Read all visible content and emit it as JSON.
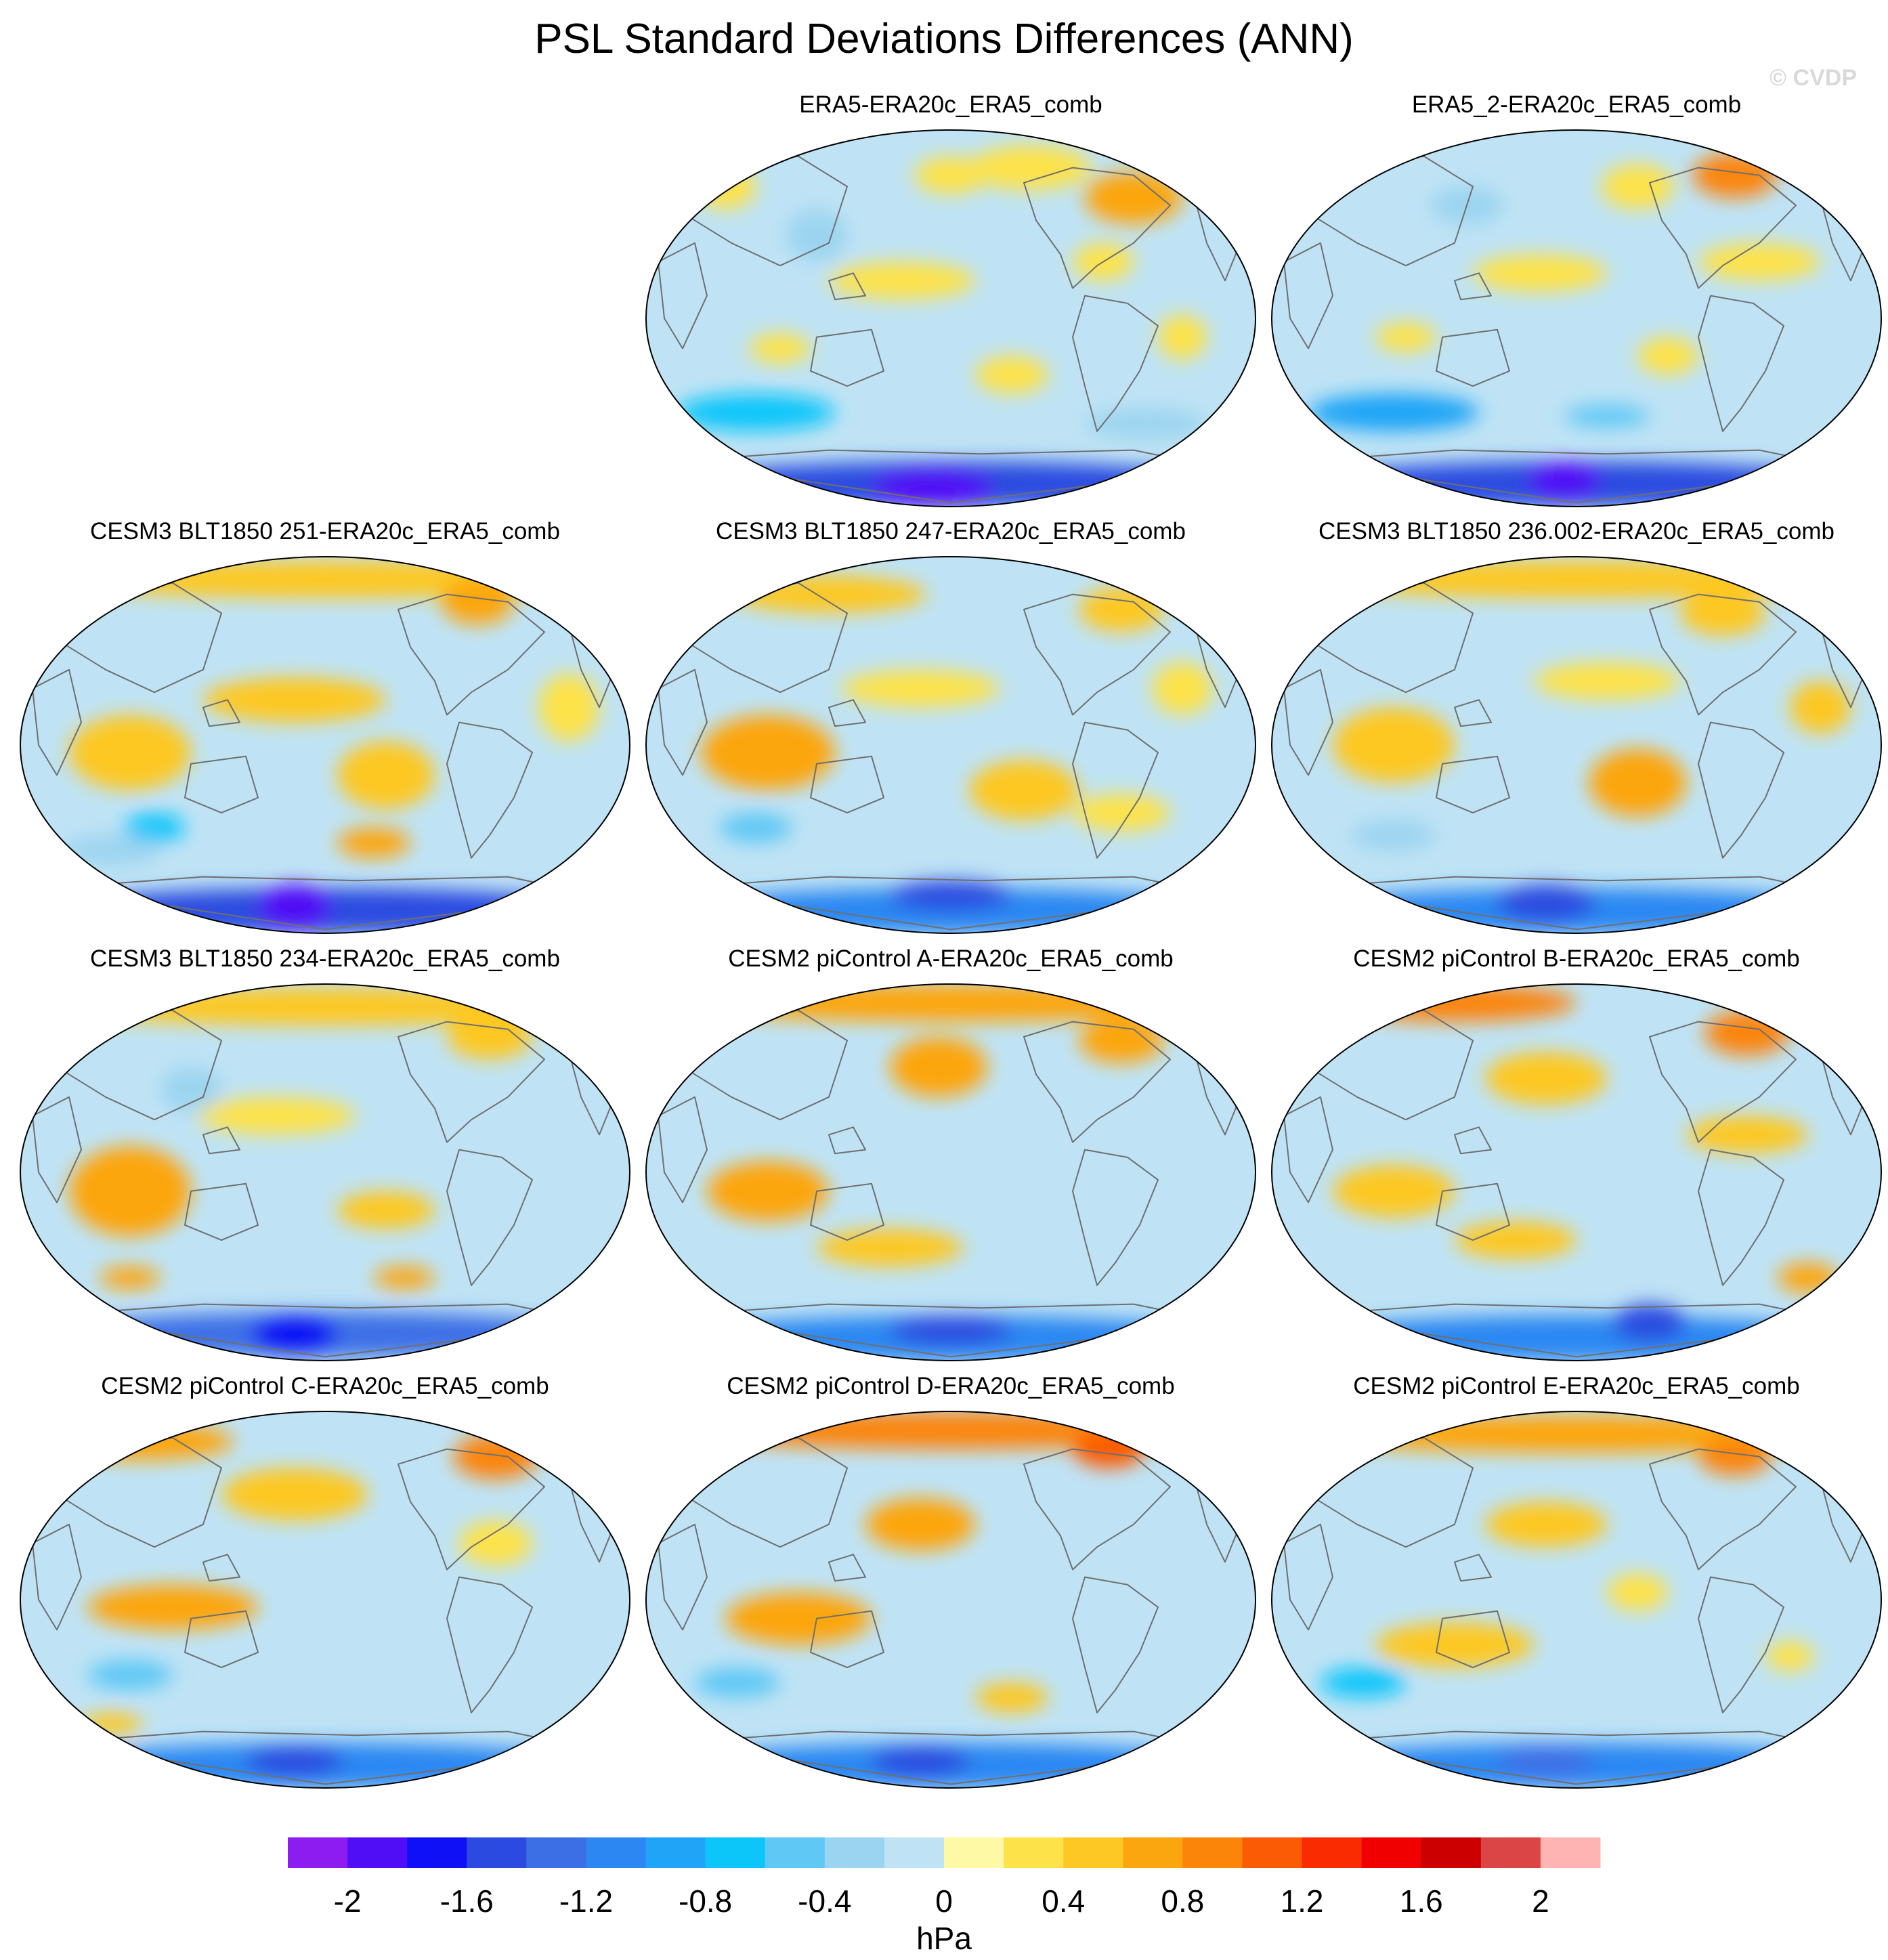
{
  "chart_data": {
    "type": "map_grid",
    "title": "PSL Standard Deviations Differences (ANN)",
    "watermark": "© CVDP",
    "projection": "robinson",
    "panels": [
      {
        "row": 0,
        "col": 1,
        "label": "ERA5-ERA20c_ERA5_comb",
        "blobs": [
          [
            0.8,
            0.18,
            0.08,
            0.07,
            0.6
          ],
          [
            0.63,
            0.1,
            0.1,
            0.06,
            0.3
          ],
          [
            0.13,
            0.15,
            0.05,
            0.06,
            0.3
          ],
          [
            0.5,
            0.12,
            0.06,
            0.05,
            0.3
          ],
          [
            0.75,
            0.35,
            0.05,
            0.05,
            0.25
          ],
          [
            0.28,
            0.28,
            0.05,
            0.07,
            -0.3
          ],
          [
            0.42,
            0.4,
            0.12,
            0.05,
            0.2
          ],
          [
            0.88,
            0.55,
            0.04,
            0.06,
            0.25
          ],
          [
            0.22,
            0.58,
            0.05,
            0.04,
            0.3
          ],
          [
            0.6,
            0.65,
            0.06,
            0.05,
            0.2
          ],
          [
            0.18,
            0.75,
            0.13,
            0.05,
            -0.8
          ],
          [
            0.82,
            0.78,
            0.1,
            0.04,
            -0.4
          ],
          [
            0.5,
            0.94,
            0.45,
            0.06,
            -1.6
          ],
          [
            0.47,
            0.95,
            0.1,
            0.05,
            -1.9
          ]
        ]
      },
      {
        "row": 0,
        "col": 2,
        "label": "ERA5_2-ERA20c_ERA5_comb",
        "blobs": [
          [
            0.76,
            0.12,
            0.07,
            0.06,
            0.8
          ],
          [
            0.6,
            0.15,
            0.06,
            0.06,
            0.3
          ],
          [
            0.32,
            0.2,
            0.06,
            0.05,
            -0.4
          ],
          [
            0.44,
            0.38,
            0.11,
            0.05,
            0.3
          ],
          [
            0.8,
            0.35,
            0.1,
            0.05,
            0.3
          ],
          [
            0.22,
            0.55,
            0.05,
            0.04,
            0.3
          ],
          [
            0.65,
            0.6,
            0.05,
            0.05,
            0.2
          ],
          [
            0.2,
            0.75,
            0.14,
            0.05,
            -0.9
          ],
          [
            0.55,
            0.76,
            0.07,
            0.03,
            -0.5
          ],
          [
            0.5,
            0.94,
            0.45,
            0.06,
            -1.5
          ],
          [
            0.48,
            0.93,
            0.06,
            0.05,
            -2.0
          ]
        ]
      },
      {
        "row": 1,
        "col": 0,
        "label": "CESM3 BLT1850 251-ERA20c_ERA5_comb",
        "blobs": [
          [
            0.5,
            0.06,
            0.45,
            0.05,
            0.5
          ],
          [
            0.75,
            0.12,
            0.06,
            0.06,
            0.6
          ],
          [
            0.45,
            0.38,
            0.15,
            0.06,
            0.4
          ],
          [
            0.18,
            0.52,
            0.1,
            0.1,
            0.5
          ],
          [
            0.6,
            0.58,
            0.08,
            0.09,
            0.5
          ],
          [
            0.9,
            0.4,
            0.05,
            0.09,
            0.3
          ],
          [
            0.22,
            0.72,
            0.05,
            0.04,
            -0.7
          ],
          [
            0.58,
            0.76,
            0.06,
            0.04,
            0.6
          ],
          [
            0.15,
            0.78,
            0.08,
            0.04,
            -0.4
          ],
          [
            0.5,
            0.94,
            0.45,
            0.06,
            -1.6
          ],
          [
            0.45,
            0.93,
            0.06,
            0.06,
            -2.0
          ]
        ]
      },
      {
        "row": 1,
        "col": 1,
        "label": "CESM3 BLT1850 247-ERA20c_ERA5_comb",
        "blobs": [
          [
            0.3,
            0.1,
            0.16,
            0.05,
            0.5
          ],
          [
            0.78,
            0.14,
            0.07,
            0.06,
            0.4
          ],
          [
            0.2,
            0.52,
            0.11,
            0.1,
            0.6
          ],
          [
            0.45,
            0.35,
            0.13,
            0.05,
            0.3
          ],
          [
            0.62,
            0.62,
            0.09,
            0.08,
            0.5
          ],
          [
            0.88,
            0.35,
            0.05,
            0.07,
            0.3
          ],
          [
            0.18,
            0.72,
            0.06,
            0.04,
            -0.6
          ],
          [
            0.78,
            0.68,
            0.08,
            0.05,
            0.3
          ],
          [
            0.5,
            0.94,
            0.45,
            0.06,
            -1.2
          ],
          [
            0.5,
            0.9,
            0.1,
            0.04,
            -1.5
          ]
        ]
      },
      {
        "row": 1,
        "col": 2,
        "label": "CESM3 BLT1850 236.002-ERA20c_ERA5_comb",
        "blobs": [
          [
            0.5,
            0.06,
            0.45,
            0.05,
            0.4
          ],
          [
            0.74,
            0.15,
            0.07,
            0.06,
            0.5
          ],
          [
            0.2,
            0.5,
            0.1,
            0.1,
            0.5
          ],
          [
            0.55,
            0.33,
            0.12,
            0.05,
            0.3
          ],
          [
            0.6,
            0.6,
            0.08,
            0.09,
            0.6
          ],
          [
            0.9,
            0.4,
            0.05,
            0.07,
            0.4
          ],
          [
            0.2,
            0.74,
            0.07,
            0.04,
            -0.3
          ],
          [
            0.5,
            0.94,
            0.45,
            0.06,
            -1.2
          ],
          [
            0.45,
            0.92,
            0.08,
            0.05,
            -1.5
          ]
        ]
      },
      {
        "row": 2,
        "col": 0,
        "label": "CESM3 BLT1850 234-ERA20c_ERA5_comb",
        "blobs": [
          [
            0.5,
            0.06,
            0.45,
            0.05,
            0.5
          ],
          [
            0.77,
            0.14,
            0.07,
            0.06,
            0.5
          ],
          [
            0.18,
            0.55,
            0.1,
            0.12,
            0.7
          ],
          [
            0.42,
            0.35,
            0.13,
            0.05,
            0.3
          ],
          [
            0.6,
            0.6,
            0.08,
            0.05,
            0.4
          ],
          [
            0.18,
            0.78,
            0.05,
            0.03,
            0.6
          ],
          [
            0.63,
            0.78,
            0.05,
            0.03,
            0.6
          ],
          [
            0.28,
            0.28,
            0.05,
            0.06,
            -0.3
          ],
          [
            0.5,
            0.93,
            0.45,
            0.06,
            -1.3
          ],
          [
            0.45,
            0.93,
            0.07,
            0.05,
            -1.7
          ]
        ]
      },
      {
        "row": 2,
        "col": 1,
        "label": "CESM2 piControl A-ERA20c_ERA5_comb",
        "blobs": [
          [
            0.5,
            0.05,
            0.45,
            0.05,
            0.7
          ],
          [
            0.48,
            0.22,
            0.08,
            0.08,
            0.7
          ],
          [
            0.78,
            0.15,
            0.07,
            0.06,
            0.6
          ],
          [
            0.2,
            0.55,
            0.1,
            0.08,
            0.6
          ],
          [
            0.4,
            0.7,
            0.12,
            0.05,
            0.4
          ],
          [
            0.78,
            0.55,
            0.05,
            0.05,
            -0.2
          ],
          [
            0.5,
            0.94,
            0.45,
            0.06,
            -1.2
          ],
          [
            0.5,
            0.92,
            0.1,
            0.04,
            -1.6
          ]
        ]
      },
      {
        "row": 2,
        "col": 2,
        "label": "CESM2 piControl B-ERA20c_ERA5_comb",
        "blobs": [
          [
            0.3,
            0.05,
            0.2,
            0.05,
            0.8
          ],
          [
            0.78,
            0.13,
            0.07,
            0.06,
            0.8
          ],
          [
            0.45,
            0.25,
            0.1,
            0.07,
            0.5
          ],
          [
            0.78,
            0.4,
            0.1,
            0.05,
            0.4
          ],
          [
            0.2,
            0.55,
            0.1,
            0.07,
            0.5
          ],
          [
            0.4,
            0.68,
            0.1,
            0.05,
            0.4
          ],
          [
            0.88,
            0.78,
            0.05,
            0.04,
            0.6
          ],
          [
            0.5,
            0.94,
            0.45,
            0.06,
            -1.2
          ],
          [
            0.62,
            0.9,
            0.06,
            0.05,
            -1.5
          ]
        ]
      },
      {
        "row": 3,
        "col": 0,
        "label": "CESM2 piControl C-ERA20c_ERA5_comb",
        "blobs": [
          [
            0.2,
            0.08,
            0.15,
            0.05,
            0.7
          ],
          [
            0.78,
            0.12,
            0.07,
            0.06,
            0.8
          ],
          [
            0.45,
            0.22,
            0.12,
            0.07,
            0.5
          ],
          [
            0.25,
            0.52,
            0.14,
            0.06,
            0.6
          ],
          [
            0.18,
            0.7,
            0.07,
            0.04,
            -0.5
          ],
          [
            0.15,
            0.83,
            0.05,
            0.03,
            0.5
          ],
          [
            0.78,
            0.35,
            0.06,
            0.06,
            0.3
          ],
          [
            0.5,
            0.94,
            0.45,
            0.06,
            -1.2
          ],
          [
            0.45,
            0.93,
            0.08,
            0.04,
            -1.5
          ]
        ]
      },
      {
        "row": 3,
        "col": 1,
        "label": "CESM2 piControl D-ERA20c_ERA5_comb",
        "blobs": [
          [
            0.5,
            0.05,
            0.45,
            0.05,
            0.9
          ],
          [
            0.76,
            0.1,
            0.06,
            0.05,
            1.0
          ],
          [
            0.45,
            0.3,
            0.09,
            0.07,
            0.6
          ],
          [
            0.25,
            0.55,
            0.12,
            0.07,
            0.6
          ],
          [
            0.15,
            0.72,
            0.07,
            0.04,
            -0.6
          ],
          [
            0.6,
            0.76,
            0.06,
            0.04,
            0.5
          ],
          [
            0.5,
            0.94,
            0.45,
            0.06,
            -1.2
          ],
          [
            0.45,
            0.93,
            0.08,
            0.04,
            -1.5
          ]
        ]
      },
      {
        "row": 3,
        "col": 2,
        "label": "CESM2 piControl E-ERA20c_ERA5_comb",
        "blobs": [
          [
            0.5,
            0.06,
            0.45,
            0.05,
            0.6
          ],
          [
            0.76,
            0.12,
            0.06,
            0.05,
            0.8
          ],
          [
            0.45,
            0.3,
            0.1,
            0.06,
            0.4
          ],
          [
            0.3,
            0.62,
            0.13,
            0.06,
            0.5
          ],
          [
            0.15,
            0.72,
            0.07,
            0.04,
            -0.7
          ],
          [
            0.6,
            0.48,
            0.05,
            0.05,
            0.3
          ],
          [
            0.85,
            0.65,
            0.04,
            0.04,
            0.3
          ],
          [
            0.5,
            0.94,
            0.45,
            0.06,
            -1.1
          ],
          [
            0.45,
            0.93,
            0.08,
            0.04,
            -1.4
          ]
        ]
      }
    ],
    "colorbar": {
      "unit": "hPa",
      "levels": [
        -2.2,
        -2.0,
        -1.8,
        -1.6,
        -1.4,
        -1.2,
        -1.0,
        -0.8,
        -0.6,
        -0.4,
        -0.2,
        0,
        0.2,
        0.4,
        0.6,
        0.8,
        1.0,
        1.2,
        1.4,
        1.6,
        1.8,
        2.0,
        2.2
      ],
      "colors": [
        "#8c1cf0",
        "#4f0ef5",
        "#0f10f5",
        "#2b4be0",
        "#3c6fe6",
        "#2c87f2",
        "#1fa4f7",
        "#0cc6fa",
        "#5fc8f5",
        "#9bd4f0",
        "#bfe3f5",
        "#fef9a5",
        "#fde24a",
        "#fdc824",
        "#fca60f",
        "#fb8508",
        "#fb5b05",
        "#fa2a01",
        "#f00000",
        "#cc0000",
        "#dc4545",
        "#ffb4b4"
      ],
      "tick_values": [
        -2,
        -1.6,
        -1.2,
        -0.8,
        -0.4,
        0,
        0.4,
        0.8,
        1.2,
        1.6,
        2
      ],
      "tick_labels": [
        "-2",
        "-1.6",
        "-1.2",
        "-0.8",
        "-0.4",
        "0",
        "0.4",
        "0.8",
        "1.2",
        "1.6",
        "2"
      ]
    }
  }
}
